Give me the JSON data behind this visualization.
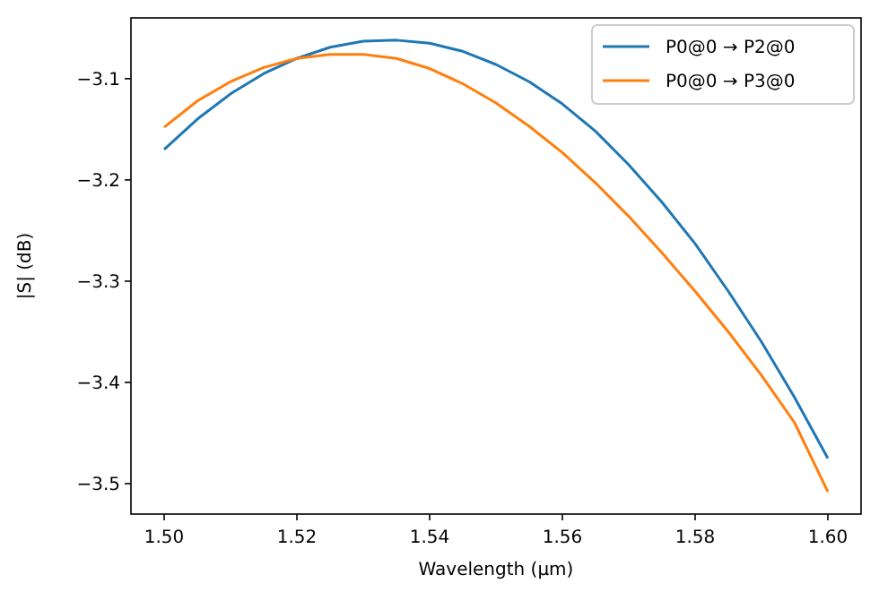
{
  "chart_data": {
    "type": "line",
    "xlabel": "Wavelength (µm)",
    "ylabel": "|S| (dB)",
    "x": [
      1.5,
      1.505,
      1.51,
      1.515,
      1.52,
      1.525,
      1.53,
      1.535,
      1.54,
      1.545,
      1.55,
      1.555,
      1.56,
      1.565,
      1.57,
      1.575,
      1.58,
      1.585,
      1.59,
      1.595,
      1.6
    ],
    "series": [
      {
        "name": "P0@0 → P2@0",
        "color": "#1f77b4",
        "values": [
          -3.17,
          -3.14,
          -3.115,
          -3.095,
          -3.08,
          -3.069,
          -3.063,
          -3.062,
          -3.065,
          -3.073,
          -3.086,
          -3.103,
          -3.125,
          -3.152,
          -3.185,
          -3.222,
          -3.263,
          -3.31,
          -3.36,
          -3.415,
          -3.475
        ]
      },
      {
        "name": "P0@0 → P3@0",
        "color": "#ff7f0e",
        "values": [
          -3.148,
          -3.122,
          -3.103,
          -3.089,
          -3.08,
          -3.076,
          -3.076,
          -3.08,
          -3.09,
          -3.105,
          -3.124,
          -3.147,
          -3.173,
          -3.203,
          -3.236,
          -3.272,
          -3.31,
          -3.35,
          -3.393,
          -3.44,
          -3.508
        ]
      }
    ],
    "xlim": [
      1.495,
      1.605
    ],
    "xticks": [
      {
        "value": 1.5,
        "label": "1.50"
      },
      {
        "value": 1.52,
        "label": "1.52"
      },
      {
        "value": 1.54,
        "label": "1.54"
      },
      {
        "value": 1.56,
        "label": "1.56"
      },
      {
        "value": 1.58,
        "label": "1.58"
      },
      {
        "value": 1.6,
        "label": "1.60"
      }
    ],
    "ylim": [
      -3.53,
      -3.04
    ],
    "yticks": [
      {
        "value": -3.1,
        "label": "−3.1"
      },
      {
        "value": -3.2,
        "label": "−3.2"
      },
      {
        "value": -3.3,
        "label": "−3.3"
      },
      {
        "value": -3.4,
        "label": "−3.4"
      },
      {
        "value": -3.5,
        "label": "−3.5"
      }
    ],
    "legend": "top right",
    "grid": false
  }
}
